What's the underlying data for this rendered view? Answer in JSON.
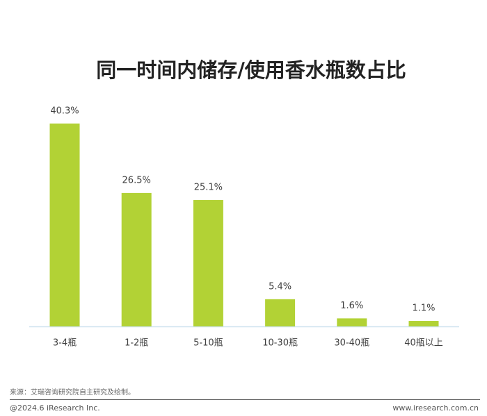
{
  "chart_data": {
    "type": "bar",
    "title": "同一时间内储存/使用香水瓶数占比",
    "categories": [
      "3-4瓶",
      "1-2瓶",
      "5-10瓶",
      "10-30瓶",
      "30-40瓶",
      "40瓶以上"
    ],
    "values": [
      40.3,
      26.5,
      25.1,
      5.4,
      1.6,
      1.1
    ],
    "value_labels": [
      "40.3%",
      "26.5%",
      "25.1%",
      "5.4%",
      "1.6%",
      "1.1%"
    ],
    "color": "#b2d235"
  },
  "source": "来源：艾瑞咨询研究院自主研究及绘制。",
  "copyright": "@2024.6 iResearch Inc.",
  "website": "www.iresearch.com.cn"
}
